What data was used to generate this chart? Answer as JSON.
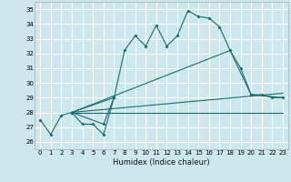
{
  "xlabel": "Humidex (Indice chaleur)",
  "bg_color": "#cce8ec",
  "grid_color": "#ffffff",
  "line_color": "#1a6b6b",
  "xlim": [
    -0.5,
    23.5
  ],
  "ylim": [
    25.5,
    35.5
  ],
  "yticks": [
    26,
    27,
    28,
    29,
    30,
    31,
    32,
    33,
    34,
    35
  ],
  "xticks": [
    0,
    1,
    2,
    3,
    4,
    5,
    6,
    7,
    8,
    9,
    10,
    11,
    12,
    13,
    14,
    15,
    16,
    17,
    18,
    19,
    20,
    21,
    22,
    23
  ],
  "series": [
    {
      "x": [
        0,
        1,
        2,
        3,
        4,
        5,
        6,
        7,
        8,
        9,
        10,
        11,
        12,
        13,
        14,
        15,
        16,
        17,
        18,
        19,
        20,
        21,
        22,
        23
      ],
      "y": [
        27.5,
        26.5,
        27.8,
        28.0,
        27.2,
        27.2,
        26.5,
        29.0,
        32.2,
        33.2,
        32.5,
        33.9,
        32.5,
        33.2,
        34.9,
        34.5,
        34.4,
        33.8,
        32.2,
        31.0,
        29.2,
        29.2,
        29.0,
        29.0
      ],
      "has_markers": true
    },
    {
      "x": [
        3,
        6,
        7,
        3
      ],
      "y": [
        28.0,
        27.2,
        29.0,
        28.0
      ],
      "has_markers": true
    },
    {
      "x": [
        3,
        18,
        20,
        23
      ],
      "y": [
        28.0,
        32.2,
        29.2,
        29.0
      ],
      "has_markers": false
    },
    {
      "x": [
        3,
        23
      ],
      "y": [
        28.0,
        29.3
      ],
      "has_markers": false
    },
    {
      "x": [
        3,
        23
      ],
      "y": [
        28.0,
        28.0
      ],
      "has_markers": false
    }
  ]
}
